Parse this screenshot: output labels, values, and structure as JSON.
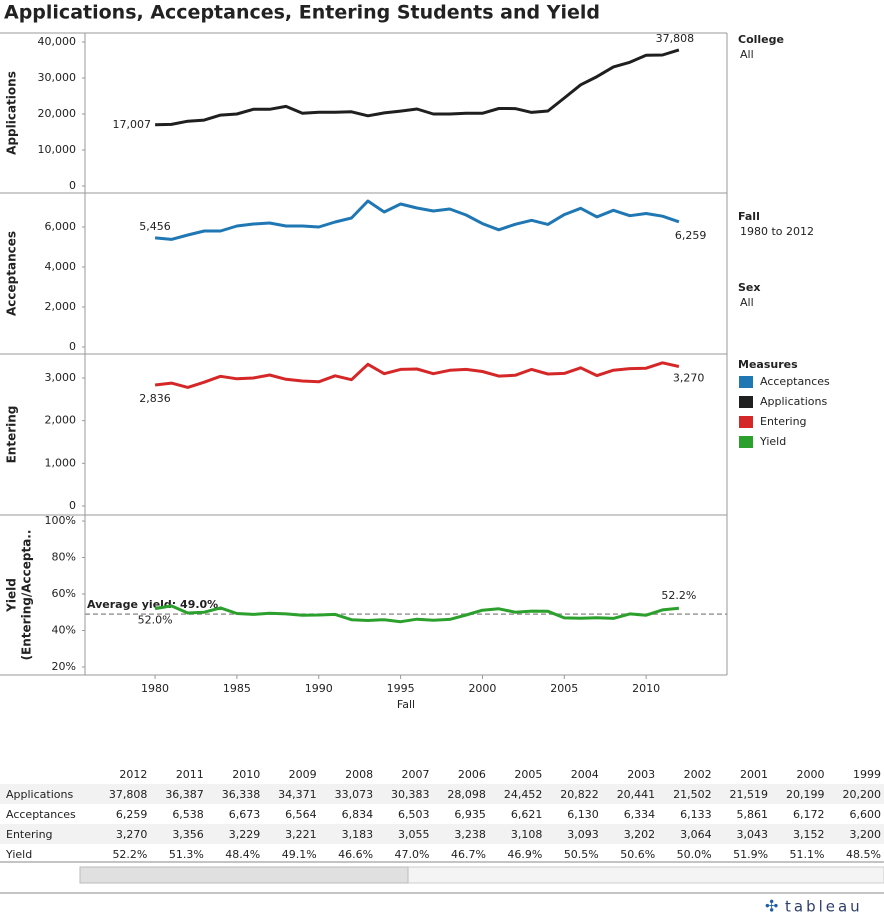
{
  "title": "Applications, Acceptances, Entering Students and Yield",
  "filters": [
    {
      "label": "College",
      "value": "All"
    },
    {
      "label": "Fall",
      "value": "1980 to 2012"
    },
    {
      "label": "Sex",
      "value": "All"
    }
  ],
  "legend_title": "Measures",
  "legend_order": [
    1,
    0,
    2,
    3
  ],
  "chart_data": [
    {
      "type": "line",
      "y_label": [
        "Applications"
      ],
      "x": [
        1980,
        1981,
        1982,
        1983,
        1984,
        1985,
        1986,
        1987,
        1988,
        1989,
        1990,
        1991,
        1992,
        1993,
        1994,
        1995,
        1996,
        1997,
        1998,
        1999,
        2000,
        2001,
        2002,
        2003,
        2004,
        2005,
        2006,
        2007,
        2008,
        2009,
        2010,
        2011,
        2012
      ],
      "xlim": [
        1975.72,
        2014.94
      ],
      "series": [
        {
          "name": "Applications",
          "color": "#1f1f1f",
          "values": [
            17007,
            17100,
            18000,
            18300,
            19700,
            20000,
            21300,
            21300,
            22100,
            20200,
            20500,
            20500,
            20600,
            19500,
            20300,
            20800,
            21400,
            20000,
            20000,
            20200,
            20199,
            21519,
            21502,
            20441,
            20822,
            24452,
            28098,
            30383,
            33073,
            34371,
            36338,
            36387,
            37808
          ],
          "value_labels": [
            "17,007",
            null,
            null,
            null,
            null,
            null,
            null,
            null,
            null,
            null,
            null,
            null,
            null,
            null,
            null,
            null,
            null,
            null,
            null,
            null,
            null,
            null,
            null,
            null,
            null,
            null,
            null,
            null,
            null,
            null,
            null,
            null,
            "37,808"
          ]
        }
      ],
      "ylim": [
        -1944,
        42500
      ],
      "yticks": [
        0,
        {
          "value": 10000,
          "label": "10,000"
        },
        {
          "value": 20000,
          "label": "20,000"
        },
        {
          "value": 30000,
          "label": "30,000"
        },
        {
          "value": 40000,
          "label": "40,000"
        }
      ]
    },
    {
      "type": "line",
      "y_label": [
        "Acceptances"
      ],
      "x": [
        1980,
        1981,
        1982,
        1983,
        1984,
        1985,
        1986,
        1987,
        1988,
        1989,
        1990,
        1991,
        1992,
        1993,
        1994,
        1995,
        1996,
        1997,
        1998,
        1999,
        2000,
        2001,
        2002,
        2003,
        2004,
        2005,
        2006,
        2007,
        2008,
        2009,
        2010,
        2011,
        2012
      ],
      "xlim": [
        1975.72,
        2014.94
      ],
      "series": [
        {
          "name": "Acceptances",
          "color": "#1f77b4",
          "values": [
            5456,
            5380,
            5600,
            5800,
            5800,
            6050,
            6150,
            6200,
            6050,
            6050,
            6000,
            6250,
            6450,
            7300,
            6750,
            7150,
            6950,
            6800,
            6900,
            6600,
            6172,
            5861,
            6133,
            6334,
            6130,
            6621,
            6935,
            6503,
            6834,
            6564,
            6673,
            6538,
            6259
          ],
          "value_labels": [
            "5,456",
            null,
            null,
            null,
            null,
            null,
            null,
            null,
            null,
            null,
            null,
            null,
            null,
            null,
            null,
            null,
            null,
            null,
            null,
            null,
            null,
            null,
            null,
            null,
            null,
            null,
            null,
            null,
            null,
            null,
            null,
            null,
            "6,259"
          ]
        }
      ],
      "ylim": [
        -350,
        7700
      ],
      "yticks": [
        0,
        {
          "value": 2000,
          "label": "2,000"
        },
        {
          "value": 4000,
          "label": "4,000"
        },
        {
          "value": 6000,
          "label": "6,000"
        }
      ]
    },
    {
      "type": "line",
      "y_label": [
        "Entering"
      ],
      "x": [
        1980,
        1981,
        1982,
        1983,
        1984,
        1985,
        1986,
        1987,
        1988,
        1989,
        1990,
        1991,
        1992,
        1993,
        1994,
        1995,
        1996,
        1997,
        1998,
        1999,
        2000,
        2001,
        2002,
        2003,
        2004,
        2005,
        2006,
        2007,
        2008,
        2009,
        2010,
        2011,
        2012
      ],
      "xlim": [
        1975.72,
        2014.94
      ],
      "series": [
        {
          "name": "Entering",
          "color": "#d62728",
          "values": [
            2836,
            2880,
            2780,
            2900,
            3040,
            2980,
            3000,
            3070,
            2970,
            2930,
            2910,
            3050,
            2960,
            3320,
            3100,
            3200,
            3210,
            3100,
            3180,
            3200,
            3152,
            3043,
            3064,
            3202,
            3093,
            3108,
            3238,
            3055,
            3183,
            3221,
            3229,
            3356,
            3270
          ],
          "value_labels": [
            "2,836",
            null,
            null,
            null,
            null,
            null,
            null,
            null,
            null,
            null,
            null,
            null,
            null,
            null,
            null,
            null,
            null,
            null,
            null,
            null,
            null,
            null,
            null,
            null,
            null,
            null,
            null,
            null,
            null,
            null,
            null,
            null,
            "3,270"
          ]
        }
      ],
      "ylim": [
        -211,
        3562
      ],
      "yticks": [
        0,
        {
          "value": 1000,
          "label": "1,000"
        },
        {
          "value": 2000,
          "label": "2,000"
        },
        {
          "value": 3000,
          "label": "3,000"
        }
      ]
    },
    {
      "type": "line",
      "y_label": [
        "Yield",
        "(Entering/Accepta.."
      ],
      "x": [
        1980,
        1981,
        1982,
        1983,
        1984,
        1985,
        1986,
        1987,
        1988,
        1989,
        1990,
        1991,
        1992,
        1993,
        1994,
        1995,
        1996,
        1997,
        1998,
        1999,
        2000,
        2001,
        2002,
        2003,
        2004,
        2005,
        2006,
        2007,
        2008,
        2009,
        2010,
        2011,
        2012
      ],
      "xlim": [
        1975.72,
        2014.94
      ],
      "xticks": [
        1980,
        1985,
        1990,
        1995,
        2000,
        2005,
        2010
      ],
      "x_label": "Fall",
      "series": [
        {
          "name": "Yield",
          "color": "#2ca02c",
          "values": [
            52.0,
            53.5,
            49.6,
            50.0,
            52.4,
            49.3,
            48.8,
            49.5,
            49.1,
            48.4,
            48.5,
            48.8,
            45.9,
            45.5,
            45.9,
            44.8,
            46.2,
            45.6,
            46.1,
            48.5,
            51.1,
            51.9,
            50.0,
            50.6,
            50.5,
            46.9,
            46.7,
            47.0,
            46.6,
            49.1,
            48.4,
            51.3,
            52.2
          ],
          "value_labels": [
            "52.0%",
            null,
            null,
            null,
            null,
            null,
            null,
            null,
            null,
            null,
            null,
            null,
            null,
            null,
            null,
            null,
            null,
            null,
            null,
            null,
            null,
            null,
            null,
            null,
            null,
            null,
            null,
            null,
            null,
            null,
            null,
            null,
            "52.2%"
          ]
        }
      ],
      "ylim": [
        15.6,
        103.3
      ],
      "yticks": [
        {
          "value": 20,
          "label": "20%"
        },
        {
          "value": 40,
          "label": "40%"
        },
        {
          "value": 60,
          "label": "60%"
        },
        {
          "value": 80,
          "label": "80%"
        },
        {
          "value": 100,
          "label": "100%"
        }
      ],
      "reference_line": {
        "value": 49.0,
        "label": "Average yield: 49.0%"
      }
    }
  ],
  "table": {
    "columns": [
      "2012",
      "2011",
      "2010",
      "2009",
      "2008",
      "2007",
      "2006",
      "2005",
      "2004",
      "2003",
      "2002",
      "2001",
      "2000",
      "1999"
    ],
    "rows": [
      {
        "label": "Applications",
        "cells": [
          "37,808",
          "36,387",
          "36,338",
          "34,371",
          "33,073",
          "30,383",
          "28,098",
          "24,452",
          "20,822",
          "20,441",
          "21,502",
          "21,519",
          "20,199",
          "20,200"
        ]
      },
      {
        "label": "Acceptances",
        "cells": [
          "6,259",
          "6,538",
          "6,673",
          "6,564",
          "6,834",
          "6,503",
          "6,935",
          "6,621",
          "6,130",
          "6,334",
          "6,133",
          "5,861",
          "6,172",
          "6,600"
        ]
      },
      {
        "label": "Entering",
        "cells": [
          "3,270",
          "3,356",
          "3,229",
          "3,221",
          "3,183",
          "3,055",
          "3,238",
          "3,108",
          "3,093",
          "3,202",
          "3,064",
          "3,043",
          "3,152",
          "3,200"
        ]
      },
      {
        "label": "Yield",
        "cells": [
          "52.2%",
          "51.3%",
          "48.4%",
          "49.1%",
          "46.6%",
          "47.0%",
          "46.7%",
          "46.9%",
          "50.5%",
          "50.6%",
          "50.0%",
          "51.9%",
          "51.1%",
          "48.5%"
        ]
      }
    ]
  },
  "brand": "tableau"
}
